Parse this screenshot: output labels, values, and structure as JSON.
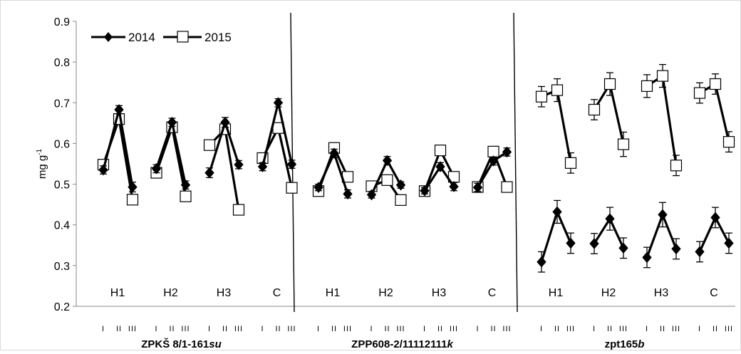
{
  "chart_data": {
    "type": "line",
    "ylabel": "mg g-1",
    "ylabel_main": "mg g",
    "ylabel_sup": "-1",
    "ylim": [
      0.2,
      0.9
    ],
    "yticks": [
      "0.2",
      "0.3",
      "0.4",
      "0.5",
      "0.6",
      "0.7",
      "0.8",
      "0.9"
    ],
    "legend": {
      "position": "top-left",
      "entries": [
        "2014",
        "2015"
      ]
    },
    "grid": false,
    "roman_labels": [
      "I",
      "II",
      "III"
    ],
    "groups": [
      {
        "name_main": "ZPKŠ 8/1-161",
        "name_suffix": "su",
        "subgroups": [
          {
            "label": "H1",
            "s2014": {
              "y": [
                0.535,
                0.683,
                0.493
              ],
              "err": [
                0.01,
                0.01,
                0.012
              ]
            },
            "s2015": {
              "y": [
                0.548,
                0.66,
                0.462
              ],
              "err": [
                0.01,
                0.01,
                0.01
              ]
            }
          },
          {
            "label": "H2",
            "s2014": {
              "y": [
                0.538,
                0.652,
                0.498
              ],
              "err": [
                0.01,
                0.01,
                0.01
              ]
            },
            "s2015": {
              "y": [
                0.528,
                0.64,
                0.47
              ],
              "err": [
                0.01,
                0.01,
                0.01
              ]
            }
          },
          {
            "label": "H3",
            "s2014": {
              "y": [
                0.528,
                0.652,
                0.548
              ],
              "err": [
                0.012,
                0.012,
                0.01
              ]
            },
            "s2015": {
              "y": [
                0.596,
                0.635,
                0.437
              ],
              "err": [
                0.01,
                0.01,
                0.008
              ]
            }
          },
          {
            "label": "C",
            "s2014": {
              "y": [
                0.543,
                0.7,
                0.549
              ],
              "err": [
                0.01,
                0.01,
                0.01
              ]
            },
            "s2015": {
              "y": [
                0.564,
                0.638,
                0.491
              ],
              "err": [
                0.01,
                0.01,
                0.008
              ]
            }
          }
        ]
      },
      {
        "name_main": "ZPP608-2/11112111",
        "name_suffix": "k",
        "subgroups": [
          {
            "label": "H1",
            "s2014": {
              "y": [
                0.492,
                0.576,
                0.476
              ],
              "err": [
                0.008,
                0.01,
                0.01
              ]
            },
            "s2015": {
              "y": [
                0.483,
                0.589,
                0.518
              ],
              "err": [
                0.008,
                0.01,
                0.01
              ]
            }
          },
          {
            "label": "H2",
            "s2014": {
              "y": [
                0.474,
                0.558,
                0.498
              ],
              "err": [
                0.008,
                0.01,
                0.008
              ]
            },
            "s2015": {
              "y": [
                0.495,
                0.51,
                0.461
              ],
              "err": [
                0.008,
                0.01,
                0.008
              ]
            }
          },
          {
            "label": "H3",
            "s2014": {
              "y": [
                0.484,
                0.543,
                0.494
              ],
              "err": [
                0.008,
                0.01,
                0.01
              ]
            },
            "s2015": {
              "y": [
                0.483,
                0.583,
                0.518
              ],
              "err": [
                0.008,
                0.01,
                0.01
              ]
            }
          },
          {
            "label": "C",
            "s2014": {
              "y": [
                0.492,
                0.557,
                0.579
              ],
              "err": [
                0.01,
                0.01,
                0.01
              ]
            },
            "s2015": {
              "y": [
                0.493,
                0.58,
                0.493
              ],
              "err": [
                0.008,
                0.01,
                0.008
              ]
            }
          }
        ]
      },
      {
        "name_main": "zpt165",
        "name_suffix": "b",
        "subgroups": [
          {
            "label": "H1",
            "s2014": {
              "y": [
                0.309,
                0.432,
                0.355
              ],
              "err": [
                0.025,
                0.028,
                0.025
              ]
            },
            "s2015": {
              "y": [
                0.715,
                0.731,
                0.552
              ],
              "err": [
                0.025,
                0.028,
                0.025
              ]
            }
          },
          {
            "label": "H2",
            "s2014": {
              "y": [
                0.354,
                0.415,
                0.343
              ],
              "err": [
                0.025,
                0.028,
                0.025
              ]
            },
            "s2015": {
              "y": [
                0.683,
                0.746,
                0.598
              ],
              "err": [
                0.025,
                0.028,
                0.03
              ]
            }
          },
          {
            "label": "H3",
            "s2014": {
              "y": [
                0.32,
                0.425,
                0.341
              ],
              "err": [
                0.025,
                0.03,
                0.025
              ]
            },
            "s2015": {
              "y": [
                0.741,
                0.766,
                0.546
              ],
              "err": [
                0.028,
                0.028,
                0.025
              ]
            }
          },
          {
            "label": "C",
            "s2014": {
              "y": [
                0.334,
                0.418,
                0.355
              ],
              "err": [
                0.025,
                0.025,
                0.025
              ]
            },
            "s2015": {
              "y": [
                0.724,
                0.746,
                0.604
              ],
              "err": [
                0.025,
                0.025,
                0.025
              ]
            }
          }
        ]
      }
    ]
  }
}
